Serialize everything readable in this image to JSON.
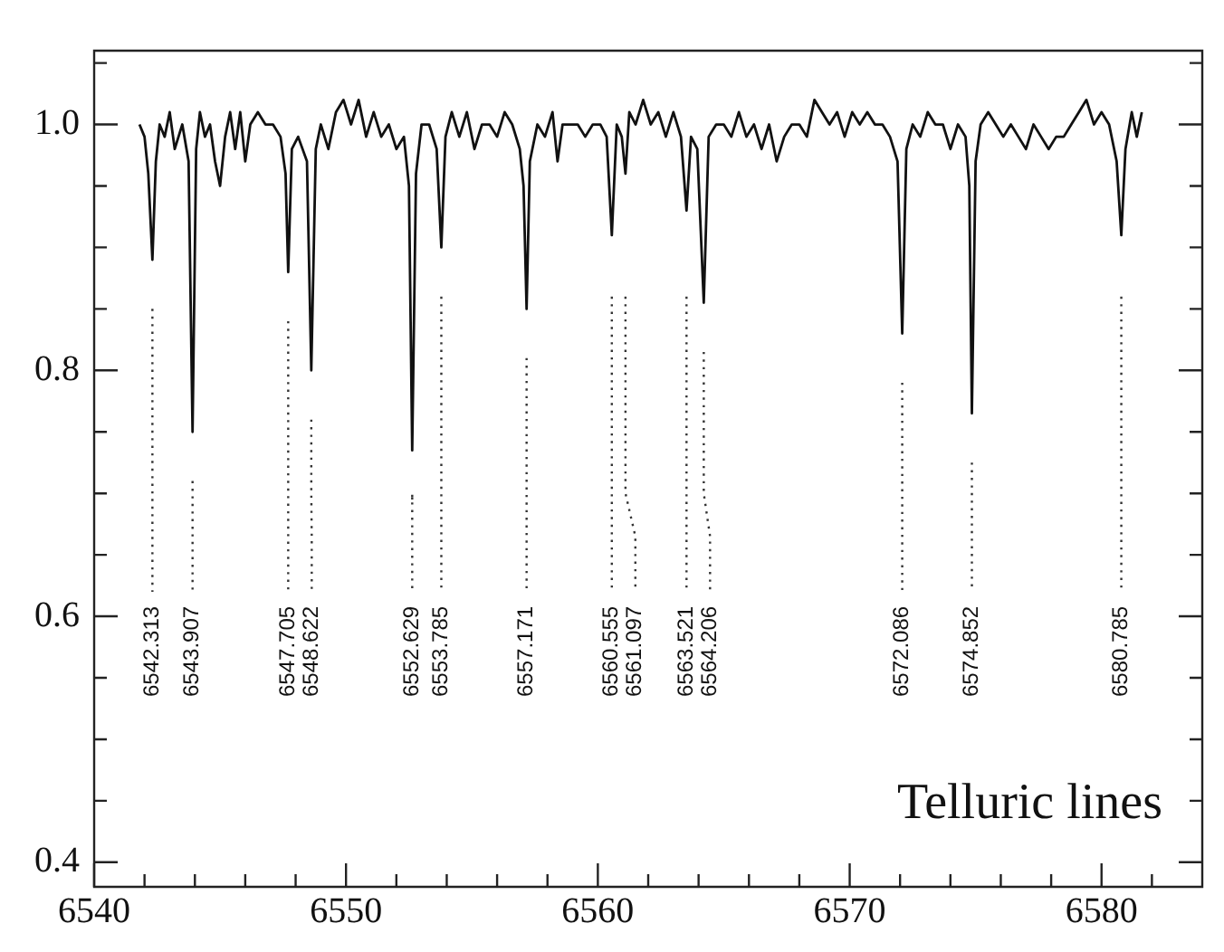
{
  "chart_data": {
    "type": "line",
    "xlim": [
      6540,
      6584
    ],
    "ylim": [
      0.38,
      1.06
    ],
    "xticks": [
      6540,
      {
        "value": 6542,
        "label": null
      },
      {
        "value": 6544,
        "label": null
      },
      {
        "value": 6546,
        "label": null
      },
      {
        "value": 6548,
        "label": null
      },
      6550,
      {
        "value": 6552,
        "label": null
      },
      {
        "value": 6554,
        "label": null
      },
      {
        "value": 6556,
        "label": null
      },
      {
        "value": 6558,
        "label": null
      },
      6560,
      {
        "value": 6562,
        "label": null
      },
      {
        "value": 6564,
        "label": null
      },
      {
        "value": 6566,
        "label": null
      },
      {
        "value": 6568,
        "label": null
      },
      6570,
      {
        "value": 6572,
        "label": null
      },
      {
        "value": 6574,
        "label": null
      },
      {
        "value": 6576,
        "label": null
      },
      {
        "value": 6578,
        "label": null
      },
      6580,
      {
        "value": 6582,
        "label": null
      }
    ],
    "yticks": [
      {
        "value": 0.4,
        "label": "0.4"
      },
      {
        "value": 0.45,
        "label": null
      },
      {
        "value": 0.5,
        "label": null
      },
      {
        "value": 0.55,
        "label": null
      },
      {
        "value": 0.6,
        "label": "0.6"
      },
      {
        "value": 0.65,
        "label": null
      },
      {
        "value": 0.7,
        "label": null
      },
      {
        "value": 0.75,
        "label": null
      },
      {
        "value": 0.8,
        "label": "0.8"
      },
      {
        "value": 0.85,
        "label": null
      },
      {
        "value": 0.9,
        "label": null
      },
      {
        "value": 0.95,
        "label": null
      },
      {
        "value": 1.0,
        "label": "1.0"
      },
      {
        "value": 1.05,
        "label": null
      }
    ],
    "grid": false,
    "legend": false,
    "marker": "none",
    "line_style": "solid",
    "annotations": [
      "Telluric lines"
    ],
    "ref_lines": [
      {
        "axis": "x",
        "value": 6542.313,
        "label": "6542.313",
        "line_style": "dotted"
      },
      {
        "axis": "x",
        "value": 6543.907,
        "label": "6543.907",
        "line_style": "dotted"
      },
      {
        "axis": "x",
        "value": 6547.705,
        "label": "6547.705",
        "line_style": "dotted"
      },
      {
        "axis": "x",
        "value": 6548.622,
        "label": "6548.622",
        "line_style": "dotted"
      },
      {
        "axis": "x",
        "value": 6552.629,
        "label": "6552.629",
        "line_style": "dotted"
      },
      {
        "axis": "x",
        "value": 6553.785,
        "label": "6553.785",
        "line_style": "dotted"
      },
      {
        "axis": "x",
        "value": 6557.171,
        "label": "6557.171",
        "line_style": "dotted"
      },
      {
        "axis": "x",
        "value": 6560.555,
        "label": "6560.555",
        "line_style": "dotted"
      },
      {
        "axis": "x",
        "value": 6561.097,
        "label": "6561.097",
        "line_style": "dotted"
      },
      {
        "axis": "x",
        "value": 6563.521,
        "label": "6563.521",
        "line_style": "dotted"
      },
      {
        "axis": "x",
        "value": 6564.206,
        "label": "6564.206",
        "line_style": "dotted"
      },
      {
        "axis": "x",
        "value": 6572.086,
        "label": "6572.086",
        "line_style": "dotted"
      },
      {
        "axis": "x",
        "value": 6574.852,
        "label": "6574.852",
        "line_style": "dotted"
      },
      {
        "axis": "x",
        "value": 6580.785,
        "label": "6580.785",
        "line_style": "dotted"
      }
    ],
    "series": [
      {
        "color": "#111111",
        "x": [
          6541.8,
          6542.0,
          6542.15,
          6542.313,
          6542.45,
          6542.6,
          6542.8,
          6543.0,
          6543.2,
          6543.5,
          6543.75,
          6543.907,
          6544.05,
          6544.2,
          6544.4,
          6544.6,
          6544.8,
          6545.0,
          6545.2,
          6545.4,
          6545.6,
          6545.8,
          6546.0,
          6546.2,
          6546.5,
          6546.8,
          6547.1,
          6547.4,
          6547.6,
          6547.705,
          6547.85,
          6548.1,
          6548.45,
          6548.622,
          6548.8,
          6549.0,
          6549.3,
          6549.6,
          6549.9,
          6550.2,
          6550.5,
          6550.8,
          6551.1,
          6551.4,
          6551.7,
          6552.0,
          6552.3,
          6552.5,
          6552.629,
          6552.78,
          6553.0,
          6553.3,
          6553.6,
          6553.785,
          6553.95,
          6554.2,
          6554.5,
          6554.8,
          6555.1,
          6555.4,
          6555.7,
          6556.0,
          6556.3,
          6556.6,
          6556.9,
          6557.05,
          6557.171,
          6557.3,
          6557.6,
          6557.9,
          6558.2,
          6558.4,
          6558.6,
          6558.9,
          6559.2,
          6559.5,
          6559.8,
          6560.1,
          6560.35,
          6560.555,
          6560.75,
          6560.95,
          6561.097,
          6561.25,
          6561.5,
          6561.8,
          6562.1,
          6562.4,
          6562.7,
          6563.0,
          6563.3,
          6563.521,
          6563.7,
          6563.95,
          6564.206,
          6564.4,
          6564.7,
          6565.0,
          6565.3,
          6565.6,
          6565.9,
          6566.2,
          6566.5,
          6566.8,
          6567.1,
          6567.4,
          6567.7,
          6568.0,
          6568.3,
          6568.6,
          6568.9,
          6569.2,
          6569.5,
          6569.8,
          6570.1,
          6570.4,
          6570.7,
          6571.0,
          6571.3,
          6571.6,
          6571.9,
          6572.086,
          6572.25,
          6572.5,
          6572.8,
          6573.1,
          6573.4,
          6573.7,
          6574.0,
          6574.3,
          6574.6,
          6574.75,
          6574.852,
          6575.0,
          6575.2,
          6575.5,
          6575.8,
          6576.1,
          6576.4,
          6576.7,
          6577.0,
          6577.3,
          6577.6,
          6577.9,
          6578.2,
          6578.5,
          6578.8,
          6579.1,
          6579.4,
          6579.7,
          6580.0,
          6580.3,
          6580.6,
          6580.785,
          6580.95,
          6581.2,
          6581.4,
          6581.6
        ],
        "values": [
          1.0,
          0.99,
          0.96,
          0.89,
          0.97,
          1.0,
          0.99,
          1.01,
          0.98,
          1.0,
          0.97,
          0.75,
          0.98,
          1.01,
          0.99,
          1.0,
          0.97,
          0.95,
          0.99,
          1.01,
          0.98,
          1.01,
          0.97,
          1.0,
          1.01,
          1.0,
          1.0,
          0.99,
          0.96,
          0.88,
          0.98,
          0.99,
          0.97,
          0.8,
          0.98,
          1.0,
          0.98,
          1.01,
          1.02,
          1.0,
          1.02,
          0.99,
          1.01,
          0.99,
          1.0,
          0.98,
          0.99,
          0.95,
          0.735,
          0.96,
          1.0,
          1.0,
          0.98,
          0.9,
          0.99,
          1.01,
          0.99,
          1.01,
          0.98,
          1.0,
          1.0,
          0.99,
          1.01,
          1.0,
          0.98,
          0.95,
          0.85,
          0.97,
          1.0,
          0.99,
          1.01,
          0.97,
          1.0,
          1.0,
          1.0,
          0.99,
          1.0,
          1.0,
          0.99,
          0.91,
          1.0,
          0.99,
          0.96,
          1.01,
          1.0,
          1.02,
          1.0,
          1.01,
          0.99,
          1.01,
          0.99,
          0.93,
          0.99,
          0.98,
          0.855,
          0.99,
          1.0,
          1.0,
          0.99,
          1.01,
          0.99,
          1.0,
          0.98,
          1.0,
          0.97,
          0.99,
          1.0,
          1.0,
          0.99,
          1.02,
          1.01,
          1.0,
          1.01,
          0.99,
          1.01,
          1.0,
          1.01,
          1.0,
          1.0,
          0.99,
          0.97,
          0.83,
          0.98,
          1.0,
          0.99,
          1.01,
          1.0,
          1.0,
          0.98,
          1.0,
          0.99,
          0.95,
          0.765,
          0.97,
          1.0,
          1.01,
          1.0,
          0.99,
          1.0,
          0.99,
          0.98,
          1.0,
          0.99,
          0.98,
          0.99,
          0.99,
          1.0,
          1.01,
          1.02,
          1.0,
          1.01,
          1.0,
          0.97,
          0.91,
          0.98,
          1.01,
          0.99,
          1.01
        ]
      }
    ]
  }
}
